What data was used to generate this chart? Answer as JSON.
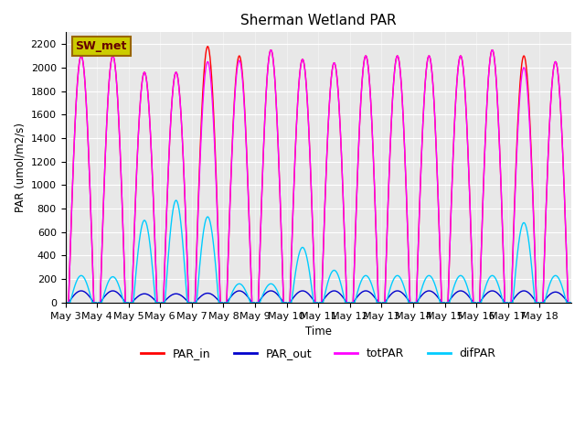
{
  "title": "Sherman Wetland PAR",
  "ylabel": "PAR (umol/m2/s)",
  "xlabel": "Time",
  "legend_label": "SW_met",
  "ylim": [
    0,
    2300
  ],
  "yticks": [
    0,
    200,
    400,
    600,
    800,
    1000,
    1200,
    1400,
    1600,
    1800,
    2000,
    2200
  ],
  "xtick_labels": [
    "May 3",
    "May 4",
    "May 5",
    "May 6",
    "May 7",
    "May 8",
    "May 9",
    "May 10",
    "May 11",
    "May 12",
    "May 13",
    "May 14",
    "May 15",
    "May 16",
    "May 17",
    "May 18"
  ],
  "color_PAR_in": "#ff0000",
  "color_PAR_out": "#0000cc",
  "color_totPAR": "#ff00ff",
  "color_difPAR": "#00ccff",
  "bg_color": "#e8e8e8",
  "num_days": 16,
  "PAR_in_peaks": [
    2100,
    2100,
    1960,
    1960,
    2180,
    2100,
    2150,
    2070,
    2040,
    2100,
    2100,
    2100,
    2100,
    2150,
    2100,
    2050
  ],
  "PAR_out_peaks": [
    100,
    100,
    75,
    75,
    80,
    100,
    100,
    100,
    100,
    100,
    100,
    100,
    100,
    100,
    100,
    90
  ],
  "totPAR_peaks": [
    2100,
    2100,
    1960,
    1960,
    2050,
    2060,
    2150,
    2070,
    2040,
    2100,
    2100,
    2100,
    2100,
    2150,
    2000,
    2050
  ],
  "difPAR_peaks": [
    230,
    220,
    700,
    870,
    730,
    160,
    160,
    470,
    275,
    230,
    230,
    230,
    230,
    230,
    680,
    230
  ],
  "day_start": 0.1,
  "day_end": 0.9
}
